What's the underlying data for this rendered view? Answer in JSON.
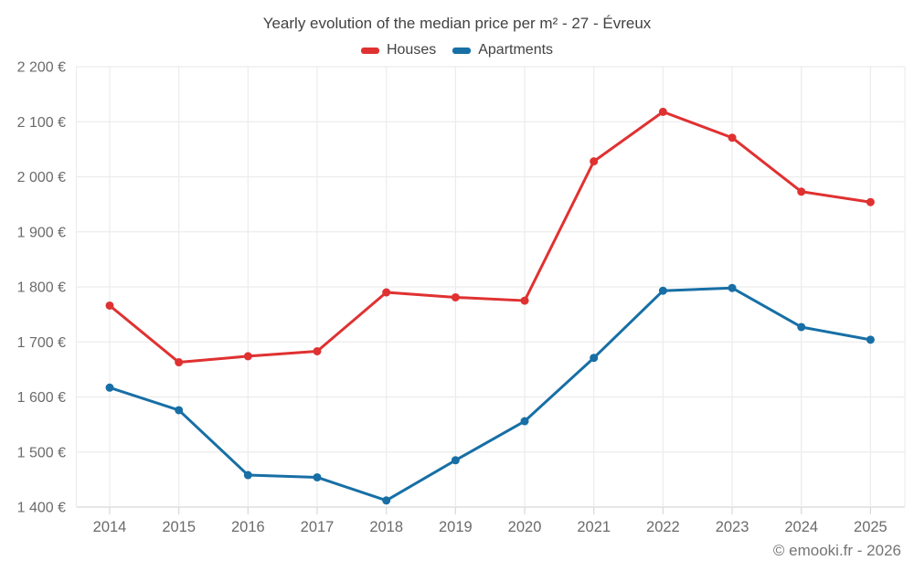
{
  "title": "Yearly evolution of the median price per m² - 27 - Évreux",
  "footer": "© emooki.fr - 2026",
  "colors": {
    "houses": "#e03131",
    "apartments": "#176fa5",
    "grid": "#ececec",
    "axis": "#d8d8d8",
    "title_text": "#424242",
    "tick_text": "#6b6b6b",
    "footer_text": "#757575"
  },
  "chart_data": {
    "type": "line",
    "title": "Yearly evolution of the median price per m² - 27 - Évreux",
    "x": [
      2014,
      2015,
      2016,
      2017,
      2018,
      2019,
      2020,
      2021,
      2022,
      2023,
      2024,
      2025
    ],
    "series": [
      {
        "name": "Houses",
        "color": "#e03131",
        "values": [
          1766,
          1663,
          1674,
          1683,
          1790,
          1781,
          1775,
          2028,
          2118,
          2071,
          1973,
          1954
        ]
      },
      {
        "name": "Apartments",
        "color": "#176fa5",
        "values": [
          1617,
          1576,
          1458,
          1454,
          1412,
          1485,
          1556,
          1671,
          1793,
          1798,
          1727,
          1704
        ]
      }
    ],
    "ylim": [
      1400,
      2200
    ],
    "yticks": [
      {
        "value": 1400,
        "label": "1 400 €"
      },
      {
        "value": 1500,
        "label": "1 500 €"
      },
      {
        "value": 1600,
        "label": "1 600 €"
      },
      {
        "value": 1700,
        "label": "1 700 €"
      },
      {
        "value": 1800,
        "label": "1 800 €"
      },
      {
        "value": 1900,
        "label": "1 900 €"
      },
      {
        "value": 2000,
        "label": "2 000 €"
      },
      {
        "value": 2100,
        "label": "2 100 €"
      },
      {
        "value": 2200,
        "label": "2 200 €"
      }
    ],
    "grid": true,
    "legend_position": "top",
    "xlabel": "",
    "ylabel": ""
  }
}
